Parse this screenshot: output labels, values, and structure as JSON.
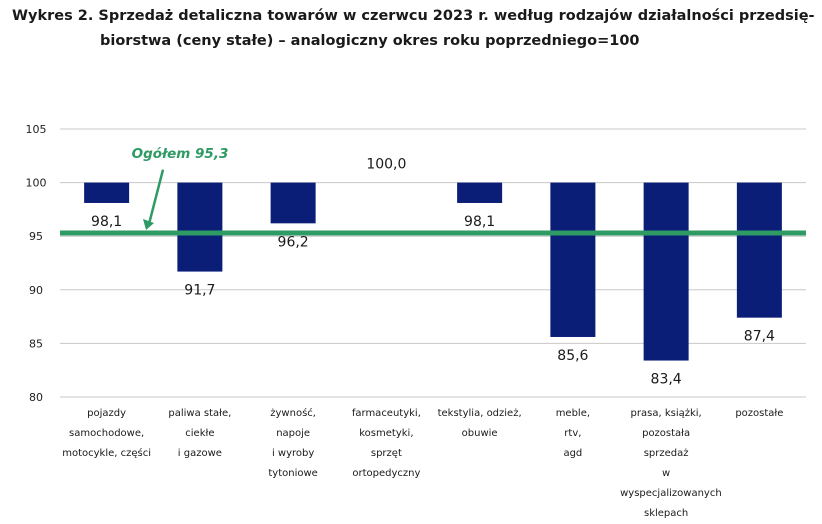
{
  "title_lines": [
    "Wykres 2. Sprzedaż detaliczna towarów w czerwcu 2023 r. według rodzajów działalności przedsię-",
    "biorstwa (ceny stałe) – analogiczny okres roku poprzedniego=100"
  ],
  "colors": {
    "bar": "#0a1e78",
    "reference_line": "#2e9a64",
    "annotation": "#2e9a64",
    "grid": "#c8c8c8"
  },
  "chart_data": {
    "type": "bar",
    "baseline": 100,
    "ylim": [
      80,
      105
    ],
    "yticks": [
      80,
      85,
      90,
      95,
      100,
      105
    ],
    "grid": true,
    "categories": [
      [
        "pojazdy",
        "samochodowe,",
        "motocykle, części"
      ],
      [
        "paliwa stałe,",
        "ciekłe",
        "i gazowe"
      ],
      [
        "żywność,",
        "napoje",
        "i wyroby",
        "tytoniowe"
      ],
      [
        "farmaceutyki,",
        "kosmetyki,",
        "sprzęt",
        "ortopedyczny"
      ],
      [
        "tekstylia, odzież,",
        "obuwie"
      ],
      [
        "meble,",
        "rtv,",
        "agd"
      ],
      [
        "prasa, książki,",
        "pozostała sprzedaż",
        "w wyspecjalizowanych",
        "sklepach"
      ],
      [
        "pozostałe"
      ]
    ],
    "values": [
      98.1,
      91.7,
      96.2,
      100.0,
      98.1,
      85.6,
      83.4,
      87.4
    ],
    "value_labels": [
      "98,1",
      "91,7",
      "96,2",
      "100,0",
      "98,1",
      "85,6",
      "83,4",
      "87,4"
    ],
    "reference_line": {
      "value": 95.3,
      "label": "Ogółem 95,3"
    }
  }
}
